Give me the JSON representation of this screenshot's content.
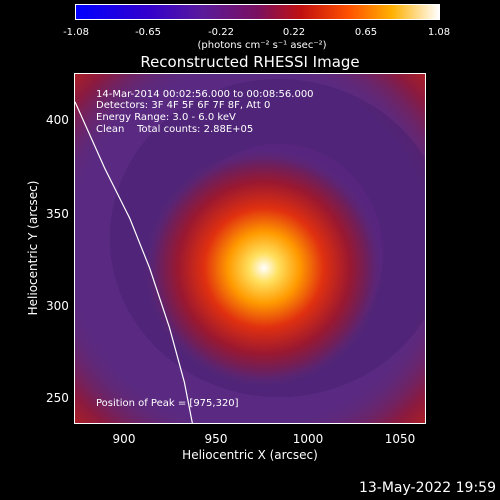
{
  "colorbar": {
    "ticks": [
      "-1.08",
      "-0.65",
      "-0.22",
      "0.22",
      "0.65",
      "1.08"
    ],
    "unit": "(photons cm⁻² s⁻¹ asec⁻²)"
  },
  "title": "Reconstructed RHESSI Image",
  "info": {
    "time": "14-Mar-2014 00:02:56.000 to 00:08:56.000",
    "detectors": "Detectors: 3F 4F 5F 6F 7F 8F, Att 0",
    "energy": "Energy Range: 3.0 - 6.0 keV",
    "clean": "Clean    Total counts: 2.88E+05",
    "peak": "Position of Peak = [975,320]"
  },
  "axes": {
    "xlabel": "Heliocentric X (arcsec)",
    "ylabel": "Heliocentric Y (arcsec)",
    "xticks": [
      "900",
      "950",
      "1000",
      "1050"
    ],
    "yticks": [
      "400",
      "350",
      "300",
      "250"
    ]
  },
  "date": "13-May-2022 19:59",
  "colors": {
    "background": "#000000",
    "text": "#ffffff"
  }
}
